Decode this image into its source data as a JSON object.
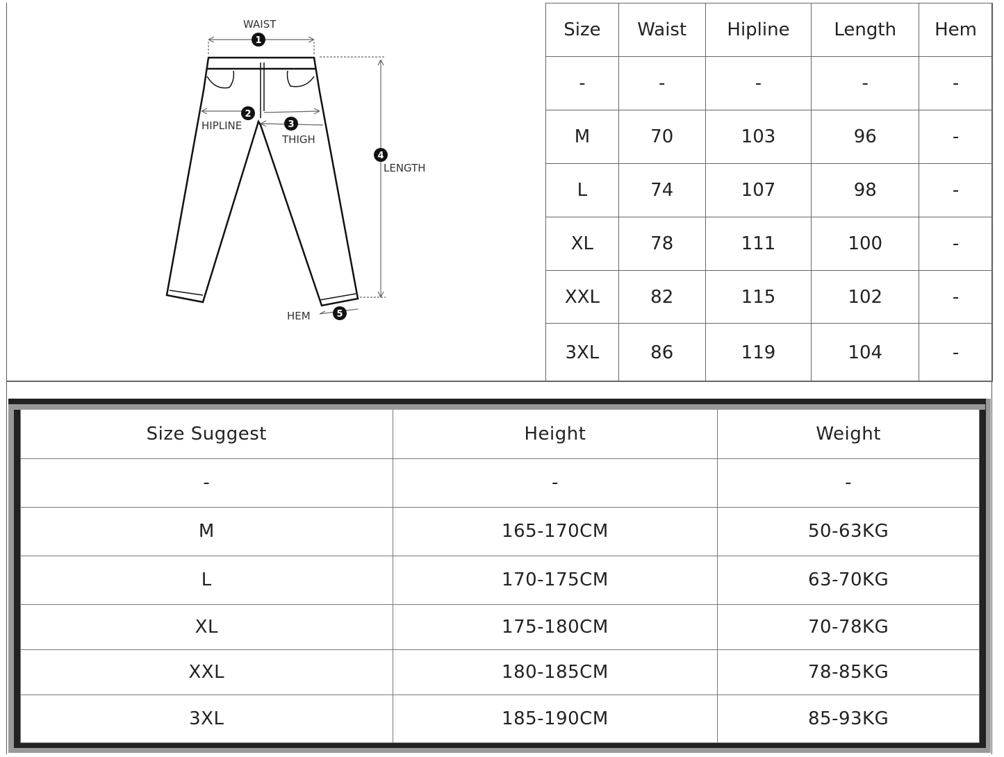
{
  "diagram": {
    "labels": {
      "waist": "WAIST",
      "hipline": "HIPLINE",
      "thigh": "THIGH",
      "length": "LENGTH",
      "hem": "HEM"
    },
    "markers": [
      "1",
      "2",
      "3",
      "4",
      "5"
    ]
  },
  "size_table": {
    "headers": [
      "Size",
      "Waist",
      "Hipline",
      "Length",
      "Hem"
    ],
    "rows": [
      [
        "-",
        "-",
        "-",
        "-",
        "-"
      ],
      [
        "M",
        "70",
        "103",
        "96",
        "-"
      ],
      [
        "L",
        "74",
        "107",
        "98",
        "-"
      ],
      [
        "XL",
        "78",
        "111",
        "100",
        "-"
      ],
      [
        "XXL",
        "82",
        "115",
        "102",
        "-"
      ],
      [
        "3XL",
        "86",
        "119",
        "104",
        "-"
      ]
    ]
  },
  "suggest_table": {
    "headers": [
      "Size Suggest",
      "Height",
      "Weight"
    ],
    "rows": [
      [
        "-",
        "-",
        "-"
      ],
      [
        "M",
        "165-170CM",
        "50-63KG"
      ],
      [
        "L",
        "170-175CM",
        "63-70KG"
      ],
      [
        "XL",
        "175-180CM",
        "70-78KG"
      ],
      [
        "XXL",
        "180-185CM",
        "78-85KG"
      ],
      [
        "3XL",
        "185-190CM",
        "85-93KG"
      ]
    ]
  }
}
